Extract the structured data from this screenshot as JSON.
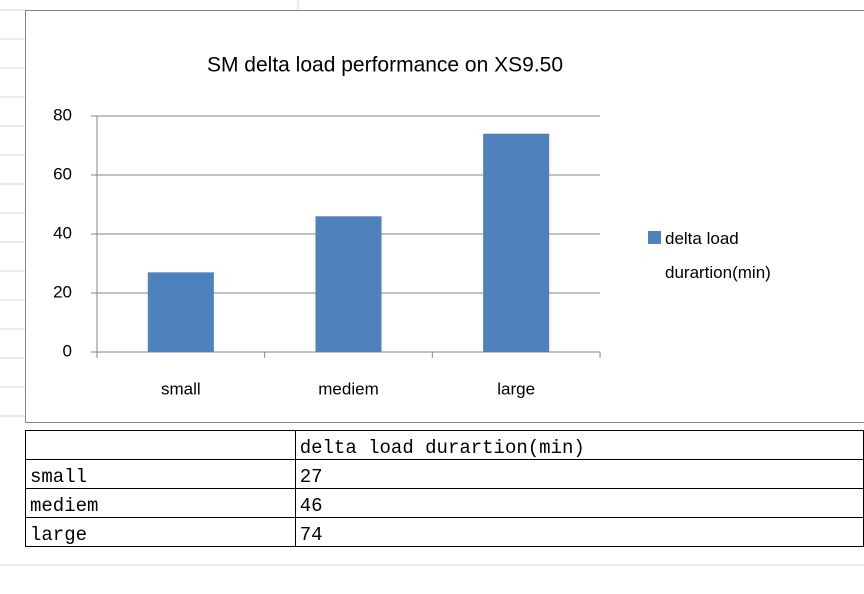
{
  "chart_data": {
    "type": "bar",
    "title": "SM delta load performance  on XS9.50",
    "categories": [
      "small",
      "mediem",
      "large"
    ],
    "series": [
      {
        "name": "delta load durartion(min)",
        "color": "#4f81bd",
        "values": [
          27,
          46,
          74
        ]
      }
    ],
    "ylim": [
      0,
      80
    ],
    "yticks": [
      0,
      20,
      40,
      60,
      80
    ],
    "grid": true,
    "legend": "right"
  }
}
